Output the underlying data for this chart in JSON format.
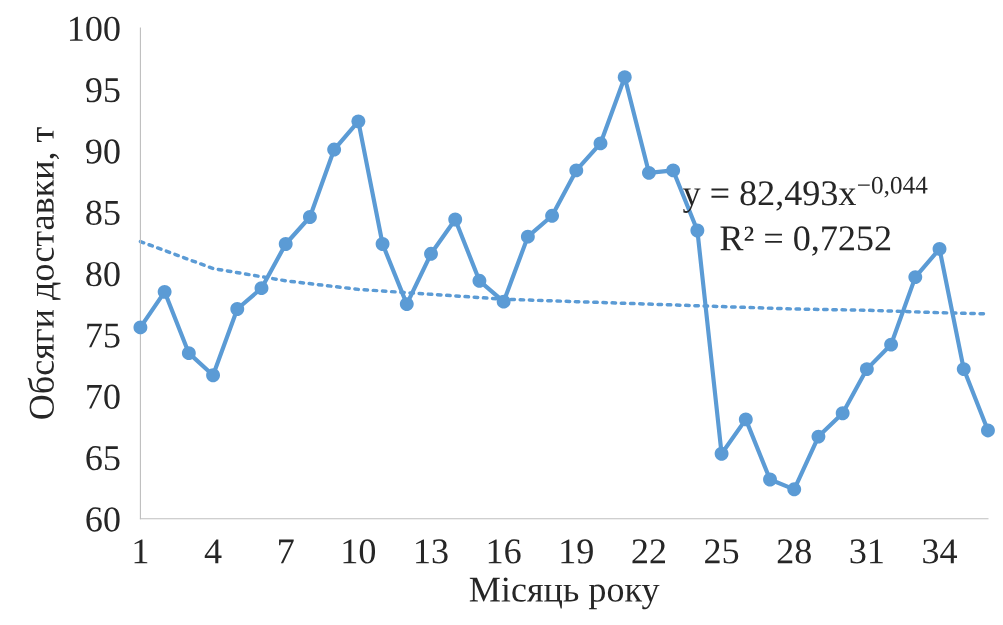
{
  "chart_data": {
    "type": "line",
    "xlabel": "Місяць року",
    "ylabel": "Обсяги доставки, т",
    "xlim": [
      1,
      36
    ],
    "xticks": [
      1,
      4,
      7,
      10,
      13,
      16,
      19,
      22,
      25,
      28,
      31,
      34
    ],
    "ylim": [
      60,
      100
    ],
    "yticks": [
      60,
      65,
      70,
      75,
      80,
      85,
      90,
      95,
      100
    ],
    "grid": false,
    "legend": false,
    "series": [
      {
        "color": "#5b9bd5",
        "marker": "circle",
        "line_style": "solid",
        "x": [
          1,
          2,
          3,
          4,
          5,
          6,
          7,
          8,
          9,
          10,
          11,
          12,
          13,
          14,
          15,
          16,
          17,
          18,
          19,
          20,
          21,
          22,
          23,
          24,
          25,
          26,
          27,
          28,
          29,
          30,
          31,
          32,
          33,
          34,
          35,
          36
        ],
        "values": [
          75.6,
          78.5,
          73.5,
          71.7,
          77.1,
          78.8,
          82.4,
          84.6,
          90.1,
          92.4,
          82.4,
          77.5,
          81.6,
          84.4,
          79.4,
          77.7,
          83.0,
          84.7,
          88.4,
          90.6,
          96.0,
          88.2,
          88.4,
          83.5,
          65.3,
          68.1,
          63.2,
          62.4,
          66.7,
          68.6,
          72.2,
          74.2,
          79.7,
          82.0,
          72.2,
          67.2
        ]
      },
      {
        "color": "#5b9bd5",
        "marker": "none",
        "line_style": "dotted",
        "x": [
          1,
          4,
          7,
          10,
          13,
          16,
          19,
          22,
          25,
          28,
          31,
          34,
          36
        ],
        "values": [
          82.6,
          80.4,
          79.4,
          78.7,
          78.3,
          77.9,
          77.7,
          77.5,
          77.3,
          77.1,
          77.0,
          76.8,
          76.7
        ]
      }
    ],
    "annotations": [
      "y = 82,493x$^{−0,044}$",
      "R² = 0,7252"
    ]
  }
}
